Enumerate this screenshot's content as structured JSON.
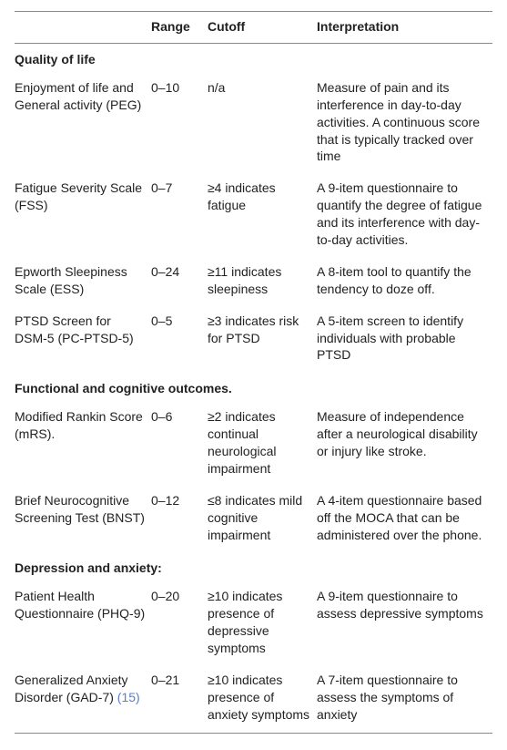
{
  "columns": [
    "",
    "Range",
    "Cutoff",
    "Interpretation"
  ],
  "sections": [
    {
      "title": "Quality of life",
      "rows": [
        {
          "name": "Enjoyment of life and General activity (PEG)",
          "range": "0–10",
          "cutoff": "n/a",
          "interpretation": "Measure of pain and its interference in day-to-day activities. A continuous score that is typically tracked over time"
        },
        {
          "name": "Fatigue Severity Scale (FSS)",
          "range": "0–7",
          "cutoff": "≥4 indicates fatigue",
          "interpretation": "A 9-item questionnaire to quantify the degree of fatigue and its interference with day-to-day activities."
        },
        {
          "name": "Epworth Sleepiness Scale (ESS)",
          "range": "0–24",
          "cutoff": "≥11 indicates sleepiness",
          "interpretation": "A 8-item tool to quantify the tendency to doze off."
        },
        {
          "name": "PTSD Screen for DSM-5 (PC-PTSD-5)",
          "range": "0–5",
          "cutoff": "≥3 indicates risk for PTSD",
          "interpretation": "A 5-item screen to identify individuals with probable PTSD"
        }
      ]
    },
    {
      "title": "Functional and cognitive outcomes.",
      "rows": [
        {
          "name": "Modified Rankin Score (mRS).",
          "range": "0–6",
          "cutoff": "≥2 indicates continual neurological impairment",
          "interpretation": "Measure of independence after a neurological disability or injury like stroke."
        },
        {
          "name": "Brief Neurocognitive Screening Test (BNST)",
          "range": "0–12",
          "cutoff": "≤8 indicates mild cognitive impairment",
          "interpretation": "A 4-item questionnaire based off the MOCA that can be administered over the phone."
        }
      ]
    },
    {
      "title": "Depression and anxiety:",
      "rows": [
        {
          "name": "Patient Health Questionnaire (PHQ-9)",
          "range": "0–20",
          "cutoff": "≥10 indicates presence of depressive symptoms",
          "interpretation": "A 9-item questionnaire to assess depressive symptoms"
        },
        {
          "name": "Generalized Anxiety Disorder (GAD-7) ",
          "ref": "(15)",
          "range": "0–21",
          "cutoff": "≥10 indicates presence of anxiety symptoms",
          "interpretation": "A 7-item questionnaire to assess the symptoms of anxiety"
        }
      ]
    }
  ]
}
